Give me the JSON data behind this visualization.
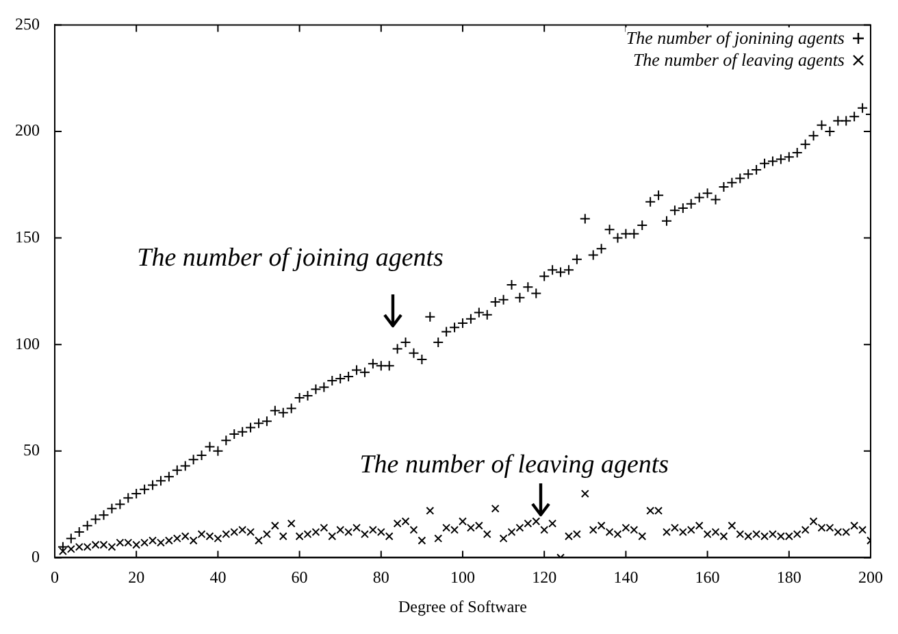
{
  "chart_data": {
    "type": "scatter",
    "xlabel": "Degree of Software",
    "xlim": [
      0,
      200
    ],
    "ylim": [
      0,
      250
    ],
    "xticks": [
      0,
      20,
      40,
      60,
      80,
      100,
      120,
      140,
      160,
      180,
      200
    ],
    "yticks": [
      0,
      50,
      100,
      150,
      200,
      250
    ],
    "grid": false,
    "legend": "top right",
    "marker": "cross",
    "annotations": [
      "The number of joining agents",
      "The number of leaving agents"
    ],
    "x": [
      2,
      4,
      6,
      8,
      10,
      12,
      14,
      16,
      18,
      20,
      22,
      24,
      26,
      28,
      30,
      32,
      34,
      36,
      38,
      40,
      42,
      44,
      46,
      48,
      50,
      52,
      54,
      56,
      58,
      60,
      62,
      64,
      66,
      68,
      70,
      72,
      74,
      76,
      78,
      80,
      82,
      84,
      86,
      88,
      90,
      92,
      94,
      96,
      98,
      100,
      102,
      104,
      106,
      108,
      110,
      112,
      114,
      116,
      118,
      120,
      122,
      124,
      126,
      128,
      130,
      132,
      134,
      136,
      138,
      140,
      142,
      144,
      146,
      148,
      150,
      152,
      154,
      156,
      158,
      160,
      162,
      164,
      166,
      168,
      170,
      172,
      174,
      176,
      178,
      180,
      182,
      184,
      186,
      188,
      190,
      192,
      194,
      196,
      198,
      200
    ],
    "series": [
      {
        "name": "The number of jonining agents",
        "color": "#000000",
        "values": [
          5,
          9,
          12,
          15,
          18,
          20,
          23,
          25,
          28,
          30,
          32,
          34,
          36,
          38,
          41,
          43,
          46,
          48,
          52,
          50,
          55,
          58,
          59,
          61,
          63,
          64,
          69,
          68,
          70,
          75,
          76,
          79,
          80,
          83,
          84,
          85,
          88,
          87,
          91,
          90,
          90,
          98,
          101,
          96,
          93,
          113,
          101,
          106,
          108,
          110,
          112,
          115,
          114,
          120,
          121,
          128,
          122,
          127,
          124,
          132,
          135,
          134,
          135,
          140,
          159,
          142,
          145,
          154,
          150,
          152,
          152,
          156,
          167,
          170,
          158,
          163,
          164,
          166,
          169,
          171,
          168,
          174,
          176,
          178,
          180,
          182,
          185,
          186,
          187,
          188,
          190,
          194,
          198,
          203,
          200,
          205,
          205,
          207,
          211,
          208
        ]
      },
      {
        "name": "The number of leaving agents",
        "color": "#000000",
        "values": [
          3,
          4,
          5,
          5,
          6,
          6,
          5,
          7,
          7,
          6,
          7,
          8,
          7,
          8,
          9,
          10,
          8,
          11,
          10,
          9,
          11,
          12,
          13,
          12,
          8,
          11,
          15,
          10,
          16,
          10,
          11,
          12,
          14,
          10,
          13,
          12,
          14,
          11,
          13,
          12,
          10,
          16,
          17,
          13,
          8,
          22,
          9,
          14,
          13,
          17,
          14,
          15,
          11,
          23,
          9,
          12,
          14,
          16,
          17,
          13,
          16,
          0,
          10,
          11,
          30,
          13,
          15,
          12,
          11,
          14,
          13,
          10,
          22,
          22,
          12,
          14,
          12,
          13,
          15,
          11,
          12,
          10,
          15,
          11,
          10,
          11,
          10,
          11,
          10,
          10,
          11,
          13,
          17,
          14,
          14,
          12,
          12,
          15,
          13,
          8
        ]
      }
    ]
  }
}
